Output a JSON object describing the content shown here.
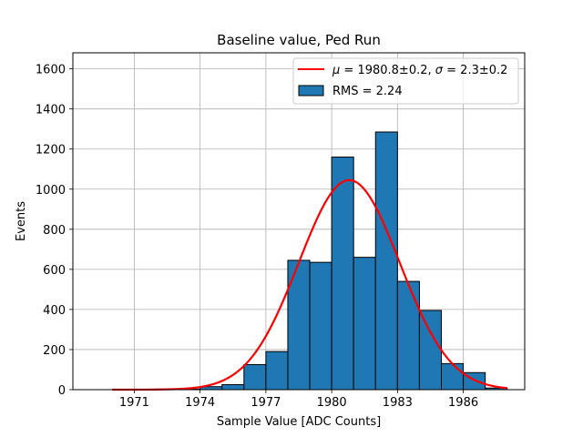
{
  "chart_data": {
    "type": "bar",
    "title": "Baseline value, Ped Run",
    "xlabel": "Sample Value [ADC Counts]",
    "ylabel": "Events",
    "xlim": [
      1968.2,
      1988.8
    ],
    "ylim": [
      0,
      1680
    ],
    "xticks": [
      1971,
      1974,
      1977,
      1980,
      1983,
      1986
    ],
    "yticks": [
      0,
      200,
      400,
      600,
      800,
      1000,
      1200,
      1400,
      1600
    ],
    "grid": true,
    "bin_width": 2,
    "bars": [
      {
        "x0": 1970,
        "x1": 1972,
        "value": 1
      },
      {
        "x0": 1972,
        "x1": 1974,
        "value": 3
      },
      {
        "x0": 1974,
        "x1": 1975,
        "value": 15
      },
      {
        "x0": 1975,
        "x1": 1976,
        "value": 25
      },
      {
        "x0": 1976,
        "x1": 1977,
        "value": 125
      },
      {
        "x0": 1977,
        "x1": 1978,
        "value": 190
      },
      {
        "x0": 1978,
        "x1": 1979,
        "value": 645
      },
      {
        "x0": 1979,
        "x1": 1980,
        "value": 635
      },
      {
        "x0": 1980,
        "x1": 1981,
        "value": 1160
      },
      {
        "x0": 1981,
        "x1": 1982,
        "value": 660
      },
      {
        "x0": 1982,
        "x1": 1983,
        "value": 1285
      },
      {
        "x0": 1983,
        "x1": 1984,
        "value": 540
      },
      {
        "x0": 1984,
        "x1": 1985,
        "value": 395
      },
      {
        "x0": 1985,
        "x1": 1986,
        "value": 130
      },
      {
        "x0": 1986,
        "x1": 1987,
        "value": 85
      },
      {
        "x0": 1987,
        "x1": 1988,
        "value": 8
      }
    ],
    "fit": {
      "type": "gaussian",
      "mu": 1980.8,
      "sigma": 2.3,
      "amplitude": 1045,
      "x_range": [
        1970,
        1988
      ]
    },
    "series": [
      {
        "name": "histogram",
        "label": "RMS = 2.24",
        "color": "#1f77b4",
        "edge": "#000000"
      },
      {
        "name": "fit",
        "label_prefix_mu": "μ",
        "label_mu_text": " = 1980.8±0.2, ",
        "label_prefix_sigma": "σ",
        "label_sigma_text": " = 2.3±0.2",
        "color": "#ff0000"
      }
    ],
    "legend_position": "top-right"
  }
}
